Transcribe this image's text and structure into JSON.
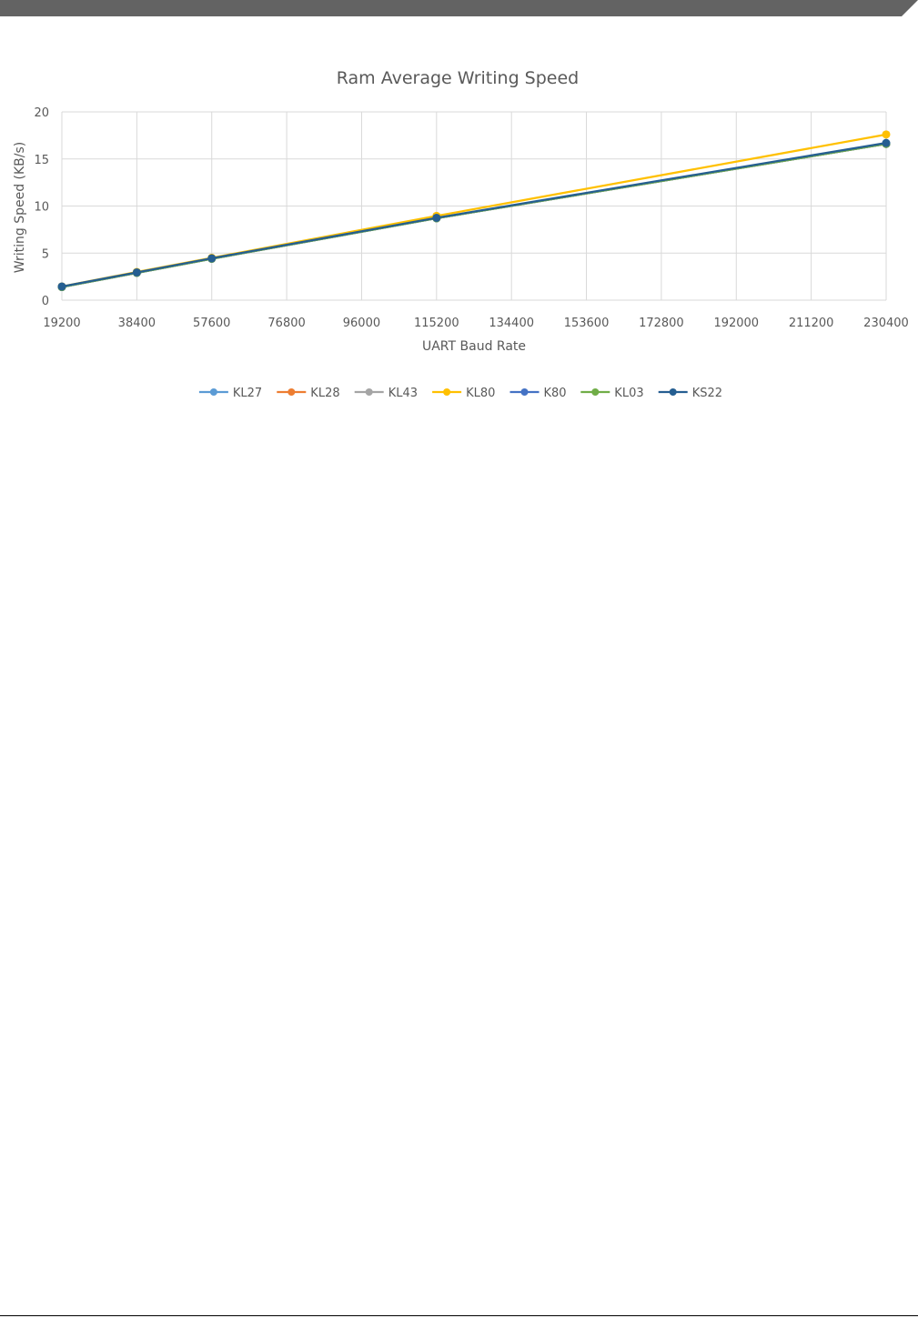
{
  "chart_data": {
    "type": "line",
    "title": "Ram Average Writing Speed",
    "xlabel": "UART Baud Rate",
    "ylabel": "Writing Speed (KB/s)",
    "x": [
      19200,
      38400,
      57600,
      76800,
      96000,
      115200,
      134400,
      153600,
      172800,
      192000,
      211200,
      230400
    ],
    "x_tick_labels": [
      "19200",
      "38400",
      "57600",
      "76800",
      "96000",
      "115200",
      "134400",
      "153600",
      "172800",
      "192000",
      "211200",
      "230400"
    ],
    "xlim": [
      19200,
      230400
    ],
    "ylim": [
      0,
      20
    ],
    "y_ticks": [
      0,
      5,
      10,
      15,
      20
    ],
    "y_tick_labels": [
      "0",
      "5",
      "10",
      "15",
      "20"
    ],
    "grid": true,
    "legend_position": "bottom",
    "series": [
      {
        "name": "KL27",
        "color": "#5b9bd5",
        "points": [
          [
            19200,
            1.4
          ],
          [
            38400,
            2.9
          ],
          [
            57600,
            4.4
          ],
          [
            115200,
            8.7
          ],
          [
            230400,
            16.6
          ]
        ]
      },
      {
        "name": "KL28",
        "color": "#ed7d31",
        "points": [
          [
            19200,
            1.4
          ],
          [
            38400,
            2.9
          ],
          [
            57600,
            4.4
          ],
          [
            115200,
            8.7
          ],
          [
            230400,
            16.6
          ]
        ]
      },
      {
        "name": "KL43",
        "color": "#a5a5a5",
        "points": [
          [
            19200,
            1.4
          ],
          [
            38400,
            2.9
          ],
          [
            57600,
            4.4
          ],
          [
            115200,
            8.7
          ],
          [
            230400,
            16.6
          ]
        ]
      },
      {
        "name": "KL80",
        "color": "#ffc000",
        "points": [
          [
            19200,
            1.45
          ],
          [
            38400,
            3.0
          ],
          [
            57600,
            4.5
          ],
          [
            115200,
            8.95
          ],
          [
            230400,
            17.6
          ]
        ]
      },
      {
        "name": "K80",
        "color": "#4472c4",
        "points": [
          [
            19200,
            1.4
          ],
          [
            38400,
            2.9
          ],
          [
            57600,
            4.4
          ],
          [
            115200,
            8.7
          ],
          [
            230400,
            16.6
          ]
        ]
      },
      {
        "name": "KL03",
        "color": "#70ad47",
        "points": [
          [
            19200,
            1.4
          ],
          [
            38400,
            2.9
          ],
          [
            57600,
            4.4
          ],
          [
            115200,
            8.7
          ],
          [
            230400,
            16.6
          ]
        ]
      },
      {
        "name": "KS22",
        "color": "#255e91",
        "points": [
          [
            19200,
            1.45
          ],
          [
            38400,
            2.95
          ],
          [
            57600,
            4.45
          ],
          [
            115200,
            8.75
          ],
          [
            230400,
            16.7
          ]
        ]
      }
    ]
  },
  "colors": {
    "top_bar": "#636363",
    "grid": "#d9d9d9",
    "axis_text": "#595959"
  }
}
